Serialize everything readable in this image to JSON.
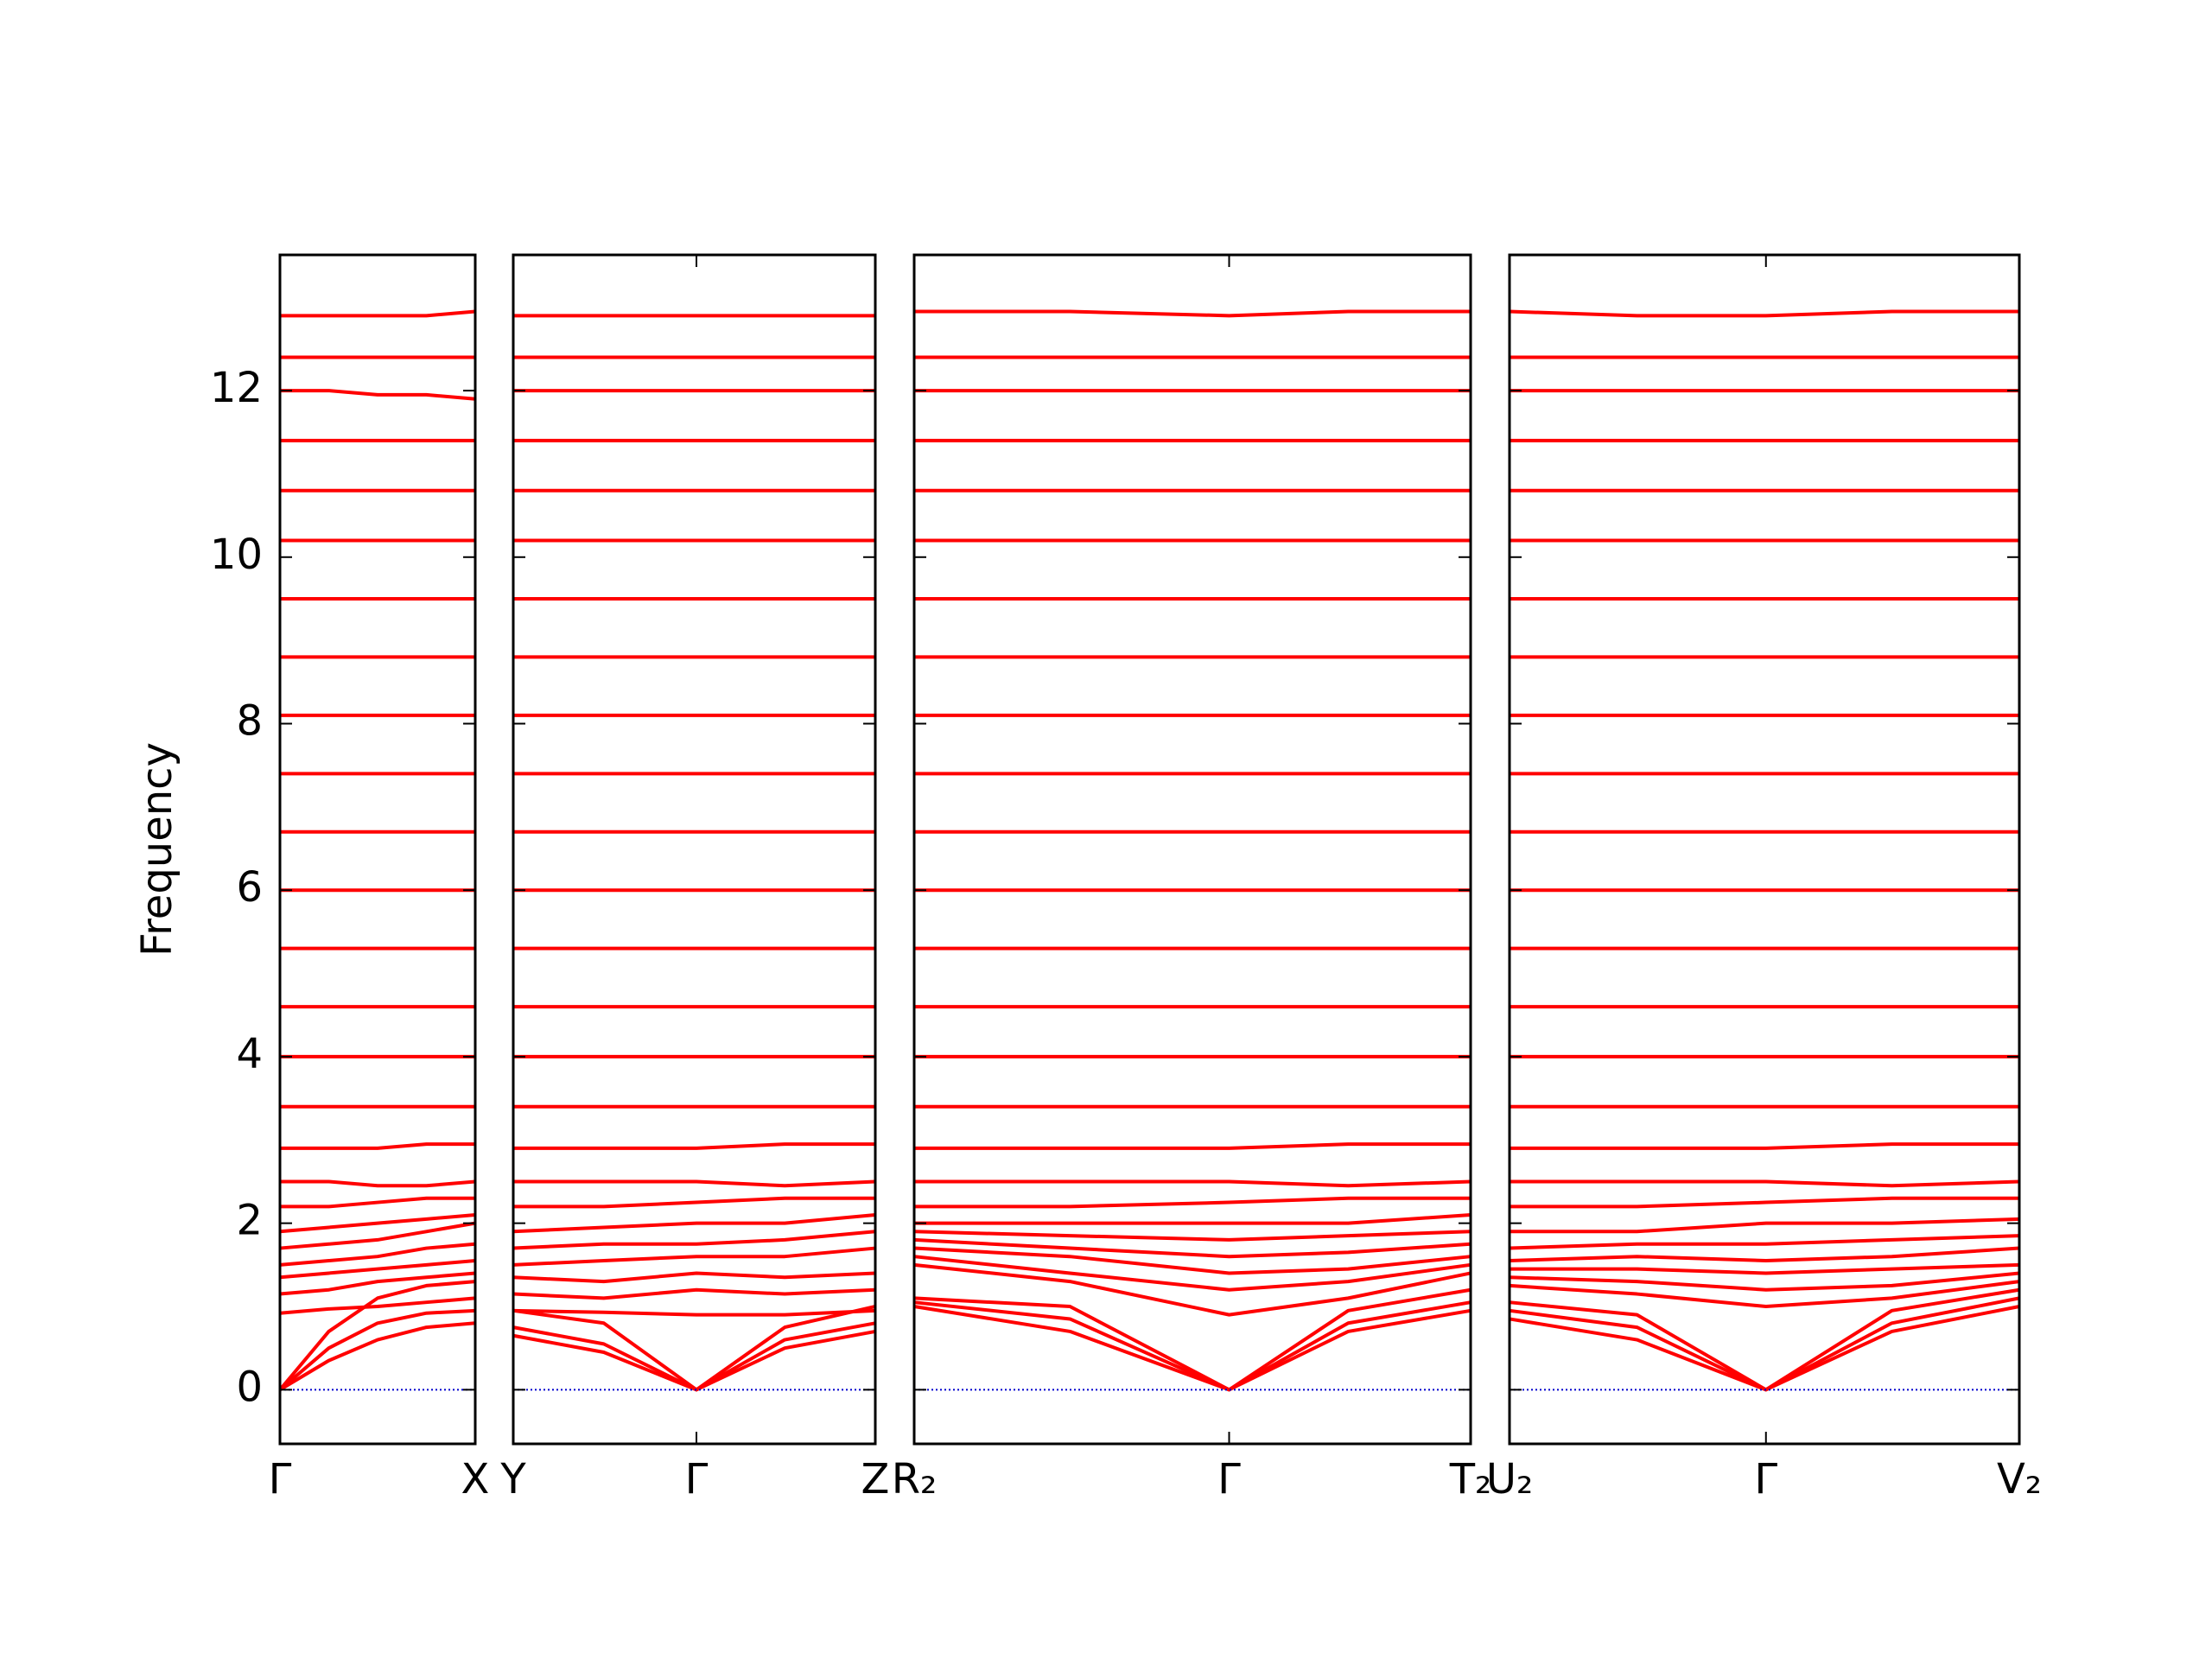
{
  "chart_data": [
    {
      "type": "line",
      "ylabel": "Frequency",
      "ylim": [
        -0.65,
        13.63
      ],
      "yticks": [
        0,
        2,
        4,
        6,
        8,
        10,
        12
      ],
      "x": [
        0,
        0.25,
        0.5,
        0.75,
        1
      ],
      "xlim": [
        0,
        1
      ],
      "xticks": [
        {
          "value": 0,
          "label": "Γ"
        },
        {
          "value": 1,
          "label": "X"
        }
      ],
      "color": "#ff0000",
      "hline": {
        "y": 0,
        "color": "#0000cc"
      },
      "series": [
        {
          "values": [
            0,
            0.35,
            0.6,
            0.75,
            0.8
          ]
        },
        {
          "values": [
            0,
            0.5,
            0.8,
            0.92,
            0.95
          ]
        },
        {
          "values": [
            0,
            0.7,
            1.1,
            1.25,
            1.3
          ]
        },
        {
          "values": [
            0.92,
            0.97,
            1.0,
            1.05,
            1.1
          ]
        },
        {
          "values": [
            1.15,
            1.2,
            1.3,
            1.35,
            1.4
          ]
        },
        {
          "values": [
            1.35,
            1.4,
            1.45,
            1.5,
            1.55
          ]
        },
        {
          "values": [
            1.5,
            1.55,
            1.6,
            1.7,
            1.75
          ]
        },
        {
          "values": [
            1.7,
            1.75,
            1.8,
            1.9,
            2.0
          ]
        },
        {
          "values": [
            1.9,
            1.95,
            2.0,
            2.05,
            2.1
          ]
        },
        {
          "values": [
            2.2,
            2.2,
            2.25,
            2.3,
            2.3
          ]
        },
        {
          "values": [
            2.5,
            2.5,
            2.45,
            2.45,
            2.5
          ]
        },
        {
          "values": [
            2.9,
            2.9,
            2.9,
            2.95,
            2.95
          ]
        },
        {
          "values": [
            3.4,
            3.4,
            3.4,
            3.4,
            3.4
          ]
        },
        {
          "values": [
            4.0,
            4.0,
            4.0,
            4.0,
            4.0
          ]
        },
        {
          "values": [
            4.6,
            4.6,
            4.6,
            4.6,
            4.6
          ]
        },
        {
          "values": [
            5.3,
            5.3,
            5.3,
            5.3,
            5.3
          ]
        },
        {
          "values": [
            6.0,
            6.0,
            6.0,
            6.0,
            6.0
          ]
        },
        {
          "values": [
            6.7,
            6.7,
            6.7,
            6.7,
            6.7
          ]
        },
        {
          "values": [
            7.4,
            7.4,
            7.4,
            7.4,
            7.4
          ]
        },
        {
          "values": [
            8.1,
            8.1,
            8.1,
            8.1,
            8.1
          ]
        },
        {
          "values": [
            8.8,
            8.8,
            8.8,
            8.8,
            8.8
          ]
        },
        {
          "values": [
            9.5,
            9.5,
            9.5,
            9.5,
            9.5
          ]
        },
        {
          "values": [
            10.2,
            10.2,
            10.2,
            10.2,
            10.2
          ]
        },
        {
          "values": [
            10.8,
            10.8,
            10.8,
            10.8,
            10.8
          ]
        },
        {
          "values": [
            11.4,
            11.4,
            11.4,
            11.4,
            11.4
          ]
        },
        {
          "values": [
            12.0,
            12.0,
            11.95,
            11.95,
            11.9
          ]
        },
        {
          "values": [
            12.4,
            12.4,
            12.4,
            12.4,
            12.4
          ]
        },
        {
          "values": [
            12.9,
            12.9,
            12.9,
            12.9,
            12.95
          ]
        }
      ]
    },
    {
      "type": "line",
      "ylim": [
        -0.65,
        13.63
      ],
      "yticks": [
        0,
        2,
        4,
        6,
        8,
        10,
        12
      ],
      "x": [
        0,
        0.25,
        0.506,
        0.75,
        1
      ],
      "xlim": [
        0,
        1
      ],
      "xticks": [
        {
          "value": 0,
          "label": "Y"
        },
        {
          "value": 0.506,
          "label": "Γ"
        },
        {
          "value": 1,
          "label": "Z"
        }
      ],
      "color": "#ff0000",
      "hline": {
        "y": 0,
        "color": "#0000cc"
      },
      "series": [
        {
          "values": [
            0.65,
            0.45,
            0,
            0.5,
            0.7
          ]
        },
        {
          "values": [
            0.75,
            0.55,
            0,
            0.6,
            0.8
          ]
        },
        {
          "values": [
            0.95,
            0.8,
            0,
            0.75,
            1.0
          ]
        },
        {
          "values": [
            0.95,
            0.93,
            0.9,
            0.9,
            0.95
          ]
        },
        {
          "values": [
            1.15,
            1.1,
            1.2,
            1.15,
            1.2
          ]
        },
        {
          "values": [
            1.35,
            1.3,
            1.4,
            1.35,
            1.4
          ]
        },
        {
          "values": [
            1.5,
            1.55,
            1.6,
            1.6,
            1.7
          ]
        },
        {
          "values": [
            1.7,
            1.75,
            1.75,
            1.8,
            1.9
          ]
        },
        {
          "values": [
            1.9,
            1.95,
            2.0,
            2.0,
            2.1
          ]
        },
        {
          "values": [
            2.2,
            2.2,
            2.25,
            2.3,
            2.3
          ]
        },
        {
          "values": [
            2.5,
            2.5,
            2.5,
            2.45,
            2.5
          ]
        },
        {
          "values": [
            2.9,
            2.9,
            2.9,
            2.95,
            2.95
          ]
        },
        {
          "values": [
            3.4,
            3.4,
            3.4,
            3.4,
            3.4
          ]
        },
        {
          "values": [
            4.0,
            4.0,
            4.0,
            4.0,
            4.0
          ]
        },
        {
          "values": [
            4.6,
            4.6,
            4.6,
            4.6,
            4.6
          ]
        },
        {
          "values": [
            5.3,
            5.3,
            5.3,
            5.3,
            5.3
          ]
        },
        {
          "values": [
            6.0,
            6.0,
            6.0,
            6.0,
            6.0
          ]
        },
        {
          "values": [
            6.7,
            6.7,
            6.7,
            6.7,
            6.7
          ]
        },
        {
          "values": [
            7.4,
            7.4,
            7.4,
            7.4,
            7.4
          ]
        },
        {
          "values": [
            8.1,
            8.1,
            8.1,
            8.1,
            8.1
          ]
        },
        {
          "values": [
            8.8,
            8.8,
            8.8,
            8.8,
            8.8
          ]
        },
        {
          "values": [
            9.5,
            9.5,
            9.5,
            9.5,
            9.5
          ]
        },
        {
          "values": [
            10.2,
            10.2,
            10.2,
            10.2,
            10.2
          ]
        },
        {
          "values": [
            10.8,
            10.8,
            10.8,
            10.8,
            10.8
          ]
        },
        {
          "values": [
            11.4,
            11.4,
            11.4,
            11.4,
            11.4
          ]
        },
        {
          "values": [
            12.0,
            12.0,
            12.0,
            12.0,
            12.0
          ]
        },
        {
          "values": [
            12.4,
            12.4,
            12.4,
            12.4,
            12.4
          ]
        },
        {
          "values": [
            12.9,
            12.9,
            12.9,
            12.9,
            12.9
          ]
        }
      ]
    },
    {
      "type": "line",
      "ylim": [
        -0.65,
        13.63
      ],
      "yticks": [
        0,
        2,
        4,
        6,
        8,
        10,
        12
      ],
      "x": [
        0,
        0.28,
        0.566,
        0.78,
        1
      ],
      "xlim": [
        0,
        1
      ],
      "xticks": [
        {
          "value": 0,
          "label": "R₂"
        },
        {
          "value": 0.566,
          "label": "Γ"
        },
        {
          "value": 1,
          "label": "T₂"
        }
      ],
      "color": "#ff0000",
      "hline": {
        "y": 0,
        "color": "#0000cc"
      },
      "series": [
        {
          "values": [
            1.0,
            0.7,
            0,
            0.7,
            0.95
          ]
        },
        {
          "values": [
            1.05,
            0.85,
            0,
            0.8,
            1.05
          ]
        },
        {
          "values": [
            1.1,
            1.0,
            0,
            0.95,
            1.2
          ]
        },
        {
          "values": [
            1.5,
            1.3,
            0.9,
            1.1,
            1.4
          ]
        },
        {
          "values": [
            1.6,
            1.4,
            1.2,
            1.3,
            1.5
          ]
        },
        {
          "values": [
            1.7,
            1.6,
            1.4,
            1.45,
            1.6
          ]
        },
        {
          "values": [
            1.8,
            1.7,
            1.6,
            1.65,
            1.75
          ]
        },
        {
          "values": [
            1.9,
            1.85,
            1.8,
            1.85,
            1.9
          ]
        },
        {
          "values": [
            2.0,
            2.0,
            2.0,
            2.0,
            2.1
          ]
        },
        {
          "values": [
            2.2,
            2.2,
            2.25,
            2.3,
            2.3
          ]
        },
        {
          "values": [
            2.5,
            2.5,
            2.5,
            2.45,
            2.5
          ]
        },
        {
          "values": [
            2.9,
            2.9,
            2.9,
            2.95,
            2.95
          ]
        },
        {
          "values": [
            3.4,
            3.4,
            3.4,
            3.4,
            3.4
          ]
        },
        {
          "values": [
            4.0,
            4.0,
            4.0,
            4.0,
            4.0
          ]
        },
        {
          "values": [
            4.6,
            4.6,
            4.6,
            4.6,
            4.6
          ]
        },
        {
          "values": [
            5.3,
            5.3,
            5.3,
            5.3,
            5.3
          ]
        },
        {
          "values": [
            6.0,
            6.0,
            6.0,
            6.0,
            6.0
          ]
        },
        {
          "values": [
            6.7,
            6.7,
            6.7,
            6.7,
            6.7
          ]
        },
        {
          "values": [
            7.4,
            7.4,
            7.4,
            7.4,
            7.4
          ]
        },
        {
          "values": [
            8.1,
            8.1,
            8.1,
            8.1,
            8.1
          ]
        },
        {
          "values": [
            8.8,
            8.8,
            8.8,
            8.8,
            8.8
          ]
        },
        {
          "values": [
            9.5,
            9.5,
            9.5,
            9.5,
            9.5
          ]
        },
        {
          "values": [
            10.2,
            10.2,
            10.2,
            10.2,
            10.2
          ]
        },
        {
          "values": [
            10.8,
            10.8,
            10.8,
            10.8,
            10.8
          ]
        },
        {
          "values": [
            11.4,
            11.4,
            11.4,
            11.4,
            11.4
          ]
        },
        {
          "values": [
            12.0,
            12.0,
            12.0,
            12.0,
            12.0
          ]
        },
        {
          "values": [
            12.4,
            12.4,
            12.4,
            12.4,
            12.4
          ]
        },
        {
          "values": [
            12.95,
            12.95,
            12.9,
            12.95,
            12.95
          ]
        }
      ]
    },
    {
      "type": "line",
      "ylim": [
        -0.65,
        13.63
      ],
      "yticks": [
        0,
        2,
        4,
        6,
        8,
        10,
        12
      ],
      "x": [
        0,
        0.25,
        0.503,
        0.75,
        1
      ],
      "xlim": [
        0,
        1
      ],
      "xticks": [
        {
          "value": 0,
          "label": "U₂"
        },
        {
          "value": 0.503,
          "label": "Γ"
        },
        {
          "value": 1,
          "label": "V₂"
        }
      ],
      "color": "#ff0000",
      "hline": {
        "y": 0,
        "color": "#0000cc"
      },
      "series": [
        {
          "values": [
            0.85,
            0.6,
            0,
            0.7,
            1.0
          ]
        },
        {
          "values": [
            0.95,
            0.75,
            0,
            0.8,
            1.1
          ]
        },
        {
          "values": [
            1.05,
            0.9,
            0,
            0.95,
            1.2
          ]
        },
        {
          "values": [
            1.25,
            1.15,
            1.0,
            1.1,
            1.3
          ]
        },
        {
          "values": [
            1.35,
            1.3,
            1.2,
            1.25,
            1.4
          ]
        },
        {
          "values": [
            1.45,
            1.45,
            1.4,
            1.45,
            1.5
          ]
        },
        {
          "values": [
            1.55,
            1.6,
            1.55,
            1.6,
            1.7
          ]
        },
        {
          "values": [
            1.7,
            1.75,
            1.75,
            1.8,
            1.85
          ]
        },
        {
          "values": [
            1.9,
            1.9,
            2.0,
            2.0,
            2.05
          ]
        },
        {
          "values": [
            2.2,
            2.2,
            2.25,
            2.3,
            2.3
          ]
        },
        {
          "values": [
            2.5,
            2.5,
            2.5,
            2.45,
            2.5
          ]
        },
        {
          "values": [
            2.9,
            2.9,
            2.9,
            2.95,
            2.95
          ]
        },
        {
          "values": [
            3.4,
            3.4,
            3.4,
            3.4,
            3.4
          ]
        },
        {
          "values": [
            4.0,
            4.0,
            4.0,
            4.0,
            4.0
          ]
        },
        {
          "values": [
            4.6,
            4.6,
            4.6,
            4.6,
            4.6
          ]
        },
        {
          "values": [
            5.3,
            5.3,
            5.3,
            5.3,
            5.3
          ]
        },
        {
          "values": [
            6.0,
            6.0,
            6.0,
            6.0,
            6.0
          ]
        },
        {
          "values": [
            6.7,
            6.7,
            6.7,
            6.7,
            6.7
          ]
        },
        {
          "values": [
            7.4,
            7.4,
            7.4,
            7.4,
            7.4
          ]
        },
        {
          "values": [
            8.1,
            8.1,
            8.1,
            8.1,
            8.1
          ]
        },
        {
          "values": [
            8.8,
            8.8,
            8.8,
            8.8,
            8.8
          ]
        },
        {
          "values": [
            9.5,
            9.5,
            9.5,
            9.5,
            9.5
          ]
        },
        {
          "values": [
            10.2,
            10.2,
            10.2,
            10.2,
            10.2
          ]
        },
        {
          "values": [
            10.8,
            10.8,
            10.8,
            10.8,
            10.8
          ]
        },
        {
          "values": [
            11.4,
            11.4,
            11.4,
            11.4,
            11.4
          ]
        },
        {
          "values": [
            12.0,
            12.0,
            12.0,
            12.0,
            12.0
          ]
        },
        {
          "values": [
            12.4,
            12.4,
            12.4,
            12.4,
            12.4
          ]
        },
        {
          "values": [
            12.95,
            12.9,
            12.9,
            12.95,
            12.95
          ]
        }
      ]
    }
  ]
}
